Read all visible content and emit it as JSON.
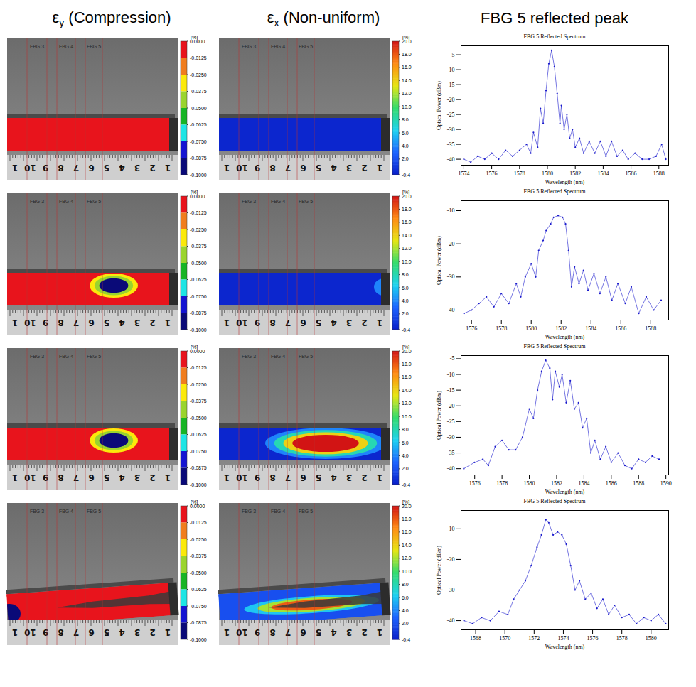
{
  "header": {
    "columns": [
      {
        "symbol": "ε",
        "subscript": "y",
        "text": "(Compression)"
      },
      {
        "symbol": "ε",
        "subscript": "x",
        "text": "(Non-uniform)"
      },
      {
        "text": "FBG 5 reflected peak"
      }
    ]
  },
  "fbg_labels": [
    "FBG 3",
    "FBG 4",
    "FBG 5"
  ],
  "ruler_labels": [
    "1",
    "2",
    "3",
    "4",
    "5",
    "6",
    "7",
    "8",
    "9",
    "10",
    "1"
  ],
  "colorbars": [
    {
      "unit": "[%]",
      "range": [
        -0.1,
        0
      ],
      "ticks": [
        {
          "value": 0,
          "label": "0.0000"
        },
        {
          "value": -0.0125,
          "label": "-0.0125"
        },
        {
          "value": -0.025,
          "label": "-0.0250"
        },
        {
          "value": -0.0375,
          "label": "-0.0375"
        },
        {
          "value": -0.05,
          "label": "-0.0500"
        },
        {
          "value": -0.0625,
          "label": "-0.0625"
        },
        {
          "value": -0.075,
          "label": "-0.0750"
        },
        {
          "value": -0.0875,
          "label": "-0.0875"
        },
        {
          "value": -0.1,
          "label": "-0.1000"
        }
      ],
      "colors": [
        "#e8141c",
        "#f07d1e",
        "#fbe90b",
        "#9ad42e",
        "#17b425",
        "#1ee5e5",
        "#1414d2",
        "#0a0a78"
      ]
    },
    {
      "unit": "[%]",
      "range": [
        -0.4,
        20
      ],
      "ticks": [
        {
          "value": 20,
          "label": "20.0"
        },
        {
          "value": 18,
          "label": "18.0"
        },
        {
          "value": 16,
          "label": "16.0"
        },
        {
          "value": 14,
          "label": "14.0"
        },
        {
          "value": 12,
          "label": "12.0"
        },
        {
          "value": 10,
          "label": "10.0"
        },
        {
          "value": 8,
          "label": "8.0"
        },
        {
          "value": 6,
          "label": "6.0"
        },
        {
          "value": 4,
          "label": "4.0"
        },
        {
          "value": 2,
          "label": "2.0"
        },
        -0.4
      ],
      "colors": [
        "#0a1ec8",
        "#1e64ff",
        "#1ed2f0",
        "#32dc6e",
        "#e6e614",
        "#ff8c14",
        "#d21414"
      ]
    }
  ],
  "strain_maps": [
    [
      {
        "base": 0,
        "spots": []
      },
      {
        "base": 0,
        "spots": []
      }
    ],
    [
      {
        "base": 0,
        "spots": [
          -0.03,
          -0.05,
          -0.1
        ]
      },
      {
        "base": 0,
        "spots": [
          4
        ]
      }
    ],
    [
      {
        "base": 0,
        "spots": [
          -0.03,
          -0.05,
          -0.1
        ]
      },
      {
        "base": 0,
        "spots": [
          4,
          8,
          14,
          20
        ]
      }
    ],
    [
      {
        "base": 0,
        "spots": [
          -0.1
        ]
      },
      {
        "base": 2,
        "spots": [
          6,
          12,
          18
        ]
      }
    ]
  ],
  "chart_data": [
    {
      "type": "line",
      "title": "FBG 5 Reflected Spectrum",
      "x_label": "Wavelength (nm)",
      "y_label": "Optical Power (dBm)",
      "color": "#1a1acc",
      "marker": "dot",
      "x": [
        1574,
        1574.5,
        1575,
        1575.5,
        1576,
        1576.5,
        1577,
        1577.5,
        1578,
        1578.5,
        1578.8,
        1579,
        1579.3,
        1579.5,
        1579.7,
        1579.9,
        1580.1,
        1580.3,
        1580.5,
        1580.7,
        1580.9,
        1581,
        1581.2,
        1581.4,
        1581.6,
        1581.8,
        1582,
        1582.3,
        1582.6,
        1583,
        1583.4,
        1583.8,
        1584.2,
        1584.6,
        1585,
        1585.4,
        1585.8,
        1586.3,
        1586.8,
        1587.3,
        1587.8,
        1588.2,
        1588.5
      ],
      "values": [
        -40,
        -41,
        -39,
        -40,
        -38,
        -40,
        -37,
        -39,
        -37,
        -35,
        -38,
        -31,
        -36,
        -23,
        -28,
        -17,
        -8,
        -3.5,
        -9,
        -18,
        -28,
        -22,
        -30,
        -25,
        -33,
        -30,
        -36,
        -33,
        -38,
        -34,
        -38,
        -34,
        -39,
        -34,
        -39,
        -37,
        -40,
        -38,
        -40,
        -40,
        -39,
        -35,
        -40
      ],
      "xlim": [
        1573.8,
        1588.7
      ],
      "xticks": [
        1574,
        1576,
        1578,
        1580,
        1582,
        1584,
        1586,
        1588
      ],
      "ylim": [
        -42,
        -2
      ],
      "yticks": [
        -40,
        -35,
        -30,
        -25,
        -20,
        -15,
        -10,
        -5
      ]
    },
    {
      "type": "line",
      "title": "FBG 5 Reflected Spectrum",
      "x_label": "Wavelength (nm)",
      "y_label": "Optical Power (dBm)",
      "color": "#1a1acc",
      "marker": "dot",
      "x": [
        1575.5,
        1576,
        1576.5,
        1577,
        1577.5,
        1578,
        1578.5,
        1579,
        1579.3,
        1579.6,
        1580,
        1580.3,
        1580.5,
        1580.8,
        1581,
        1581.3,
        1581.5,
        1581.8,
        1582.1,
        1582.3,
        1582.5,
        1582.7,
        1582.9,
        1583.2,
        1583.5,
        1583.8,
        1584.2,
        1584.6,
        1585,
        1585.4,
        1585.8,
        1586.3,
        1586.7,
        1587.2,
        1587.7,
        1588.2,
        1588.7
      ],
      "values": [
        -41,
        -40,
        -38,
        -36,
        -39,
        -35,
        -38,
        -32,
        -36,
        -30,
        -26,
        -30,
        -22,
        -19,
        -16,
        -14,
        -12,
        -11.5,
        -12,
        -14,
        -22,
        -33,
        -27,
        -32,
        -28,
        -34,
        -29,
        -35,
        -30,
        -37,
        -32,
        -38,
        -33,
        -41,
        -36,
        -40,
        -37
      ],
      "xlim": [
        1575.3,
        1589.2
      ],
      "xticks": [
        1576,
        1578,
        1580,
        1582,
        1584,
        1586,
        1588
      ],
      "ylim": [
        -43,
        -7
      ],
      "yticks": [
        -40,
        -30,
        -20,
        -10
      ]
    },
    {
      "type": "line",
      "title": "FBG 5 Reflected Spectrum",
      "x_label": "Wavelength (nm)",
      "y_label": "Optical Power (dBm)",
      "color": "#1a1acc",
      "marker": "dot",
      "x": [
        1575.2,
        1576,
        1576.6,
        1577,
        1577.5,
        1578,
        1578.5,
        1579,
        1579.5,
        1580,
        1580.3,
        1580.6,
        1580.9,
        1581.2,
        1581.5,
        1581.7,
        1581.9,
        1582.2,
        1582.4,
        1582.7,
        1583,
        1583.3,
        1583.6,
        1583.9,
        1584.2,
        1584.5,
        1584.8,
        1585.2,
        1585.6,
        1586,
        1586.5,
        1587,
        1587.5,
        1588,
        1588.5,
        1589,
        1589.5
      ],
      "values": [
        -40,
        -38,
        -37,
        -39,
        -33,
        -31,
        -34,
        -34,
        -30,
        -21,
        -24,
        -15,
        -9,
        -5.5,
        -8,
        -18,
        -9,
        -14,
        -10,
        -19,
        -12,
        -21,
        -19,
        -27,
        -24,
        -35,
        -31,
        -37,
        -33,
        -38,
        -35,
        -39,
        -40,
        -37,
        -38,
        -36,
        -37
      ],
      "xlim": [
        1575,
        1590.2
      ],
      "xticks": [
        1576,
        1578,
        1580,
        1582,
        1584,
        1586,
        1588,
        1590
      ],
      "ylim": [
        -42,
        -4
      ],
      "yticks": [
        -40,
        -35,
        -30,
        -25,
        -20,
        -15,
        -10,
        -5
      ]
    },
    {
      "type": "line",
      "title": "FBG 5 Reflected Spectrum",
      "x_label": "Wavelength (nm)",
      "y_label": "Optical Power (dBm)",
      "color": "#1a1acc",
      "marker": "dot",
      "x": [
        1567.2,
        1567.8,
        1568.4,
        1569,
        1569.6,
        1570.2,
        1570.6,
        1571,
        1571.4,
        1571.8,
        1572.2,
        1572.5,
        1572.8,
        1573,
        1573.3,
        1573.6,
        1573.9,
        1574.2,
        1574.5,
        1574.8,
        1575.1,
        1575.5,
        1575.9,
        1576.3,
        1576.7,
        1577.1,
        1577.5,
        1578,
        1578.5,
        1579,
        1579.5,
        1580,
        1580.5,
        1581
      ],
      "values": [
        -40,
        -41,
        -39,
        -40,
        -37,
        -38,
        -33,
        -30,
        -27,
        -22,
        -16,
        -12,
        -7,
        -8,
        -12,
        -11,
        -12,
        -15,
        -22,
        -30,
        -27,
        -33,
        -31,
        -36,
        -33,
        -38,
        -35,
        -39,
        -38,
        -41,
        -39,
        -40,
        -38,
        -41
      ],
      "xlim": [
        1567,
        1581.2
      ],
      "xticks": [
        1568,
        1570,
        1572,
        1574,
        1576,
        1578,
        1580
      ],
      "ylim": [
        -43,
        -4
      ],
      "yticks": [
        -40,
        -30,
        -20,
        -10
      ]
    }
  ]
}
